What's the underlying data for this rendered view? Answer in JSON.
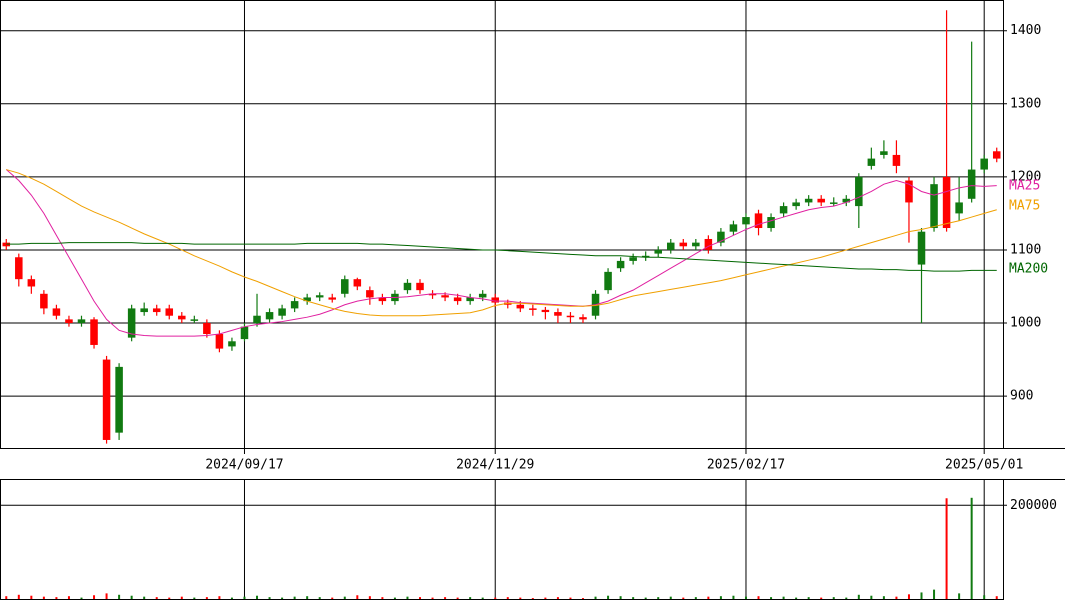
{
  "chart_data": {
    "type": "candlestick",
    "categories": [
      null,
      null,
      null,
      null,
      null,
      null,
      null,
      null,
      null,
      null,
      null,
      null,
      null,
      null,
      null,
      null,
      null,
      null,
      null,
      "2024/09/17",
      null,
      null,
      null,
      null,
      null,
      null,
      null,
      null,
      null,
      null,
      null,
      null,
      null,
      null,
      null,
      null,
      null,
      null,
      null,
      "2024/11/29",
      null,
      null,
      null,
      null,
      null,
      null,
      null,
      null,
      null,
      null,
      null,
      null,
      null,
      null,
      null,
      null,
      null,
      null,
      null,
      "2025/02/17",
      null,
      null,
      null,
      null,
      null,
      null,
      null,
      null,
      null,
      null,
      null,
      null,
      null,
      null,
      null,
      null,
      null,
      null,
      "2025/05/01",
      null
    ],
    "open": [
      1110,
      1090,
      1060,
      1040,
      1020,
      1005,
      1000,
      1005,
      950,
      850,
      980,
      1015,
      1020,
      1020,
      1010,
      1005,
      1000,
      985,
      968,
      978,
      1000,
      1005,
      1010,
      1020,
      1030,
      1035,
      1035,
      1040,
      1060,
      1045,
      1035,
      1030,
      1045,
      1055,
      1040,
      1038,
      1035,
      1030,
      1035,
      1035,
      1028,
      1025,
      1020,
      1018,
      1015,
      1010,
      1008,
      1010,
      1045,
      1075,
      1085,
      1090,
      1095,
      1100,
      1110,
      1105,
      1115,
      1110,
      1125,
      1135,
      1150,
      1130,
      1150,
      1160,
      1165,
      1170,
      1165,
      1165,
      1160,
      1215,
      1230,
      1230,
      1195,
      1080,
      1130,
      1200,
      1150,
      1170,
      1210,
      1235
    ],
    "high": [
      1115,
      1095,
      1065,
      1045,
      1025,
      1010,
      1010,
      1008,
      955,
      945,
      1025,
      1028,
      1025,
      1025,
      1015,
      1010,
      1005,
      990,
      980,
      1000,
      1040,
      1020,
      1025,
      1035,
      1040,
      1042,
      1040,
      1065,
      1062,
      1050,
      1040,
      1045,
      1060,
      1060,
      1045,
      1042,
      1040,
      1040,
      1045,
      1040,
      1032,
      1030,
      1025,
      1022,
      1020,
      1015,
      1012,
      1045,
      1075,
      1090,
      1095,
      1098,
      1105,
      1115,
      1115,
      1115,
      1120,
      1130,
      1140,
      1150,
      1155,
      1150,
      1165,
      1170,
      1175,
      1175,
      1172,
      1175,
      1205,
      1240,
      1250,
      1250,
      1200,
      1130,
      1200,
      1428,
      1200,
      1385,
      1230,
      1240
    ],
    "low": [
      1100,
      1050,
      1040,
      1012,
      1005,
      995,
      995,
      965,
      835,
      840,
      975,
      1010,
      1010,
      1005,
      1000,
      1000,
      980,
      960,
      962,
      975,
      995,
      1000,
      1005,
      1015,
      1025,
      1030,
      1028,
      1035,
      1045,
      1025,
      1025,
      1025,
      1040,
      1040,
      1033,
      1030,
      1025,
      1025,
      1030,
      1022,
      1020,
      1015,
      1010,
      1005,
      1000,
      1000,
      1000,
      1005,
      1040,
      1070,
      1080,
      1085,
      1090,
      1095,
      1100,
      1100,
      1095,
      1105,
      1120,
      1130,
      1120,
      1125,
      1145,
      1155,
      1160,
      1160,
      1160,
      1160,
      1130,
      1210,
      1225,
      1205,
      1110,
      1000,
      1125,
      1125,
      1140,
      1165,
      1205,
      1220
    ],
    "close": [
      1105,
      1060,
      1050,
      1020,
      1010,
      1000,
      1005,
      970,
      840,
      940,
      1020,
      1020,
      1015,
      1010,
      1005,
      1005,
      985,
      965,
      975,
      995,
      1010,
      1015,
      1020,
      1030,
      1035,
      1038,
      1032,
      1060,
      1050,
      1035,
      1030,
      1040,
      1055,
      1045,
      1038,
      1035,
      1030,
      1035,
      1040,
      1028,
      1025,
      1020,
      1018,
      1015,
      1010,
      1008,
      1005,
      1040,
      1070,
      1085,
      1090,
      1092,
      1100,
      1110,
      1105,
      1110,
      1100,
      1125,
      1135,
      1145,
      1130,
      1145,
      1160,
      1165,
      1170,
      1165,
      1165,
      1170,
      1200,
      1225,
      1235,
      1215,
      1165,
      1125,
      1190,
      1130,
      1165,
      1210,
      1225,
      1225
    ],
    "volume": [
      6000,
      9000,
      7000,
      5000,
      4000,
      6000,
      3000,
      8000,
      12000,
      9000,
      7000,
      5000,
      4000,
      3000,
      5000,
      3000,
      4000,
      6000,
      3000,
      5000,
      7000,
      4000,
      3000,
      5000,
      6000,
      4000,
      3000,
      5000,
      8000,
      6000,
      4000,
      3000,
      5000,
      4000,
      3000,
      4000,
      3000,
      4000,
      3000,
      3000,
      4000,
      3000,
      2000,
      3000,
      4000,
      3000,
      2000,
      5000,
      7000,
      6000,
      4000,
      3000,
      4000,
      5000,
      3000,
      4000,
      5000,
      6000,
      7000,
      5000,
      6000,
      4000,
      5000,
      3000,
      4000,
      3000,
      4000,
      3000,
      9000,
      7000,
      6000,
      5000,
      10000,
      14000,
      20000,
      215000,
      12000,
      216000,
      8000,
      6000
    ],
    "up_color": "#117a11",
    "down_color": "#ff0000",
    "series": [
      {
        "name": "MA25",
        "color": "#e020a0",
        "values": [
          1210,
          1195,
          1175,
          1150,
          1120,
          1090,
          1060,
          1030,
          1005,
          990,
          985,
          983,
          982,
          982,
          982,
          982,
          983,
          985,
          990,
          995,
          998,
          1000,
          1002,
          1005,
          1008,
          1012,
          1018,
          1025,
          1030,
          1033,
          1035,
          1035,
          1036,
          1038,
          1040,
          1040,
          1038,
          1035,
          1033,
          1030,
          1030,
          1028,
          1027,
          1026,
          1025,
          1024,
          1023,
          1025,
          1030,
          1038,
          1045,
          1055,
          1065,
          1075,
          1085,
          1095,
          1105,
          1112,
          1120,
          1128,
          1135,
          1140,
          1145,
          1150,
          1155,
          1158,
          1160,
          1165,
          1172,
          1180,
          1190,
          1195,
          1190,
          1180,
          1175,
          1180,
          1185,
          1188,
          1187,
          1188
        ]
      },
      {
        "name": "MA75",
        "color": "#f0a000",
        "values": [
          1210,
          1205,
          1198,
          1190,
          1180,
          1170,
          1160,
          1152,
          1145,
          1138,
          1130,
          1122,
          1115,
          1108,
          1100,
          1092,
          1085,
          1078,
          1070,
          1063,
          1057,
          1050,
          1043,
          1036,
          1030,
          1025,
          1020,
          1016,
          1013,
          1011,
          1010,
          1010,
          1010,
          1010,
          1011,
          1012,
          1013,
          1014,
          1018,
          1024,
          1027,
          1027,
          1026,
          1025,
          1024,
          1023,
          1023,
          1024,
          1027,
          1032,
          1037,
          1040,
          1043,
          1046,
          1049,
          1052,
          1055,
          1058,
          1062,
          1066,
          1070,
          1074,
          1078,
          1082,
          1086,
          1090,
          1095,
          1100,
          1105,
          1110,
          1115,
          1120,
          1125,
          1128,
          1132,
          1136,
          1140,
          1145,
          1150,
          1155
        ]
      },
      {
        "name": "MA200",
        "color": "#006600",
        "values": [
          1108,
          1108,
          1109,
          1109,
          1109,
          1110,
          1110,
          1110,
          1110,
          1110,
          1110,
          1109,
          1109,
          1109,
          1109,
          1108,
          1108,
          1108,
          1108,
          1108,
          1108,
          1108,
          1108,
          1108,
          1109,
          1109,
          1109,
          1109,
          1109,
          1108,
          1108,
          1107,
          1106,
          1105,
          1104,
          1103,
          1102,
          1101,
          1100,
          1100,
          1099,
          1098,
          1097,
          1096,
          1095,
          1094,
          1093,
          1092,
          1092,
          1092,
          1091,
          1090,
          1090,
          1089,
          1088,
          1087,
          1086,
          1085,
          1084,
          1083,
          1082,
          1081,
          1080,
          1079,
          1078,
          1077,
          1076,
          1075,
          1074,
          1074,
          1073,
          1073,
          1072,
          1072,
          1071,
          1071,
          1071,
          1072,
          1072,
          1072
        ]
      }
    ],
    "ylim": [
      829,
      1442
    ],
    "yticks": [
      900,
      1000,
      1100,
      1200,
      1300,
      1400
    ],
    "volume_ylim": [
      0,
      254000
    ],
    "volume_yticks": [
      200000
    ]
  }
}
